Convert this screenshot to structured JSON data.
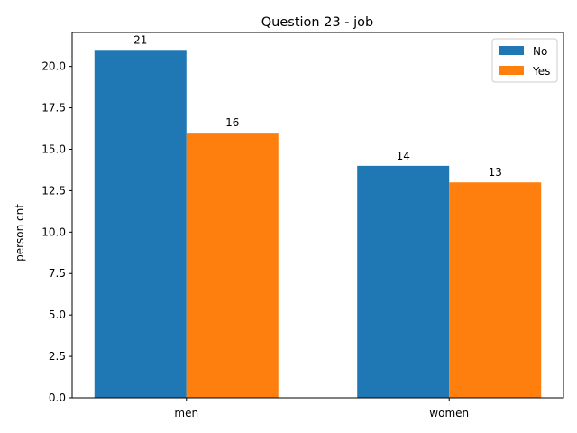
{
  "chart_data": {
    "type": "bar",
    "title": "Question 23 - job",
    "xlabel": "",
    "ylabel": "person cnt",
    "categories": [
      "men",
      "women"
    ],
    "series": [
      {
        "name": "No",
        "values": [
          21,
          14
        ],
        "color": "#1f77b4"
      },
      {
        "name": "Yes",
        "values": [
          16,
          13
        ],
        "color": "#ff7f0e"
      }
    ],
    "ylim": [
      0,
      22.05
    ],
    "yticks": [
      0.0,
      2.5,
      5.0,
      7.5,
      10.0,
      12.5,
      15.0,
      17.5,
      20.0
    ],
    "ytick_labels": [
      "0.0",
      "2.5",
      "5.0",
      "7.5",
      "10.0",
      "12.5",
      "15.0",
      "17.5",
      "20.0"
    ],
    "grid": false,
    "legend": "top-right"
  }
}
